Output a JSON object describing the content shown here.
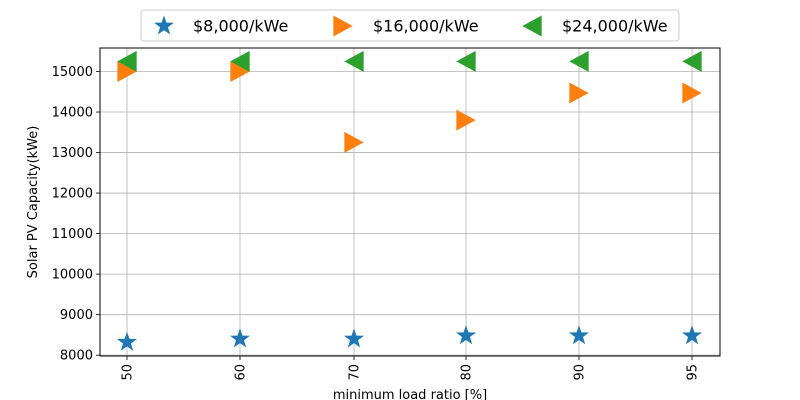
{
  "chart_data": {
    "type": "scatter",
    "x": [
      "50",
      "60",
      "70",
      "80",
      "90",
      "95"
    ],
    "xlabel": "minimum load ratio [%]",
    "ylabel": "Solar PV Capacity(kWe)",
    "ylim": [
      7980,
      15580
    ],
    "yticks": [
      8000,
      9000,
      10000,
      11000,
      12000,
      13000,
      14000,
      15000
    ],
    "grid": true,
    "legend_position": "top-center",
    "series": [
      {
        "name": "$8,000/kWe",
        "marker": "star",
        "color": "#1f77b4",
        "values": [
          8320,
          8400,
          8400,
          8480,
          8480,
          8480
        ]
      },
      {
        "name": "$16,000/kWe",
        "marker": "triangle-right",
        "color": "#ff7f0e",
        "values": [
          15000,
          15000,
          13250,
          13800,
          14470,
          14470
        ]
      },
      {
        "name": "$24,000/kWe",
        "marker": "triangle-left",
        "color": "#2ca02c",
        "values": [
          15250,
          15250,
          15250,
          15250,
          15250,
          15250
        ]
      }
    ]
  }
}
